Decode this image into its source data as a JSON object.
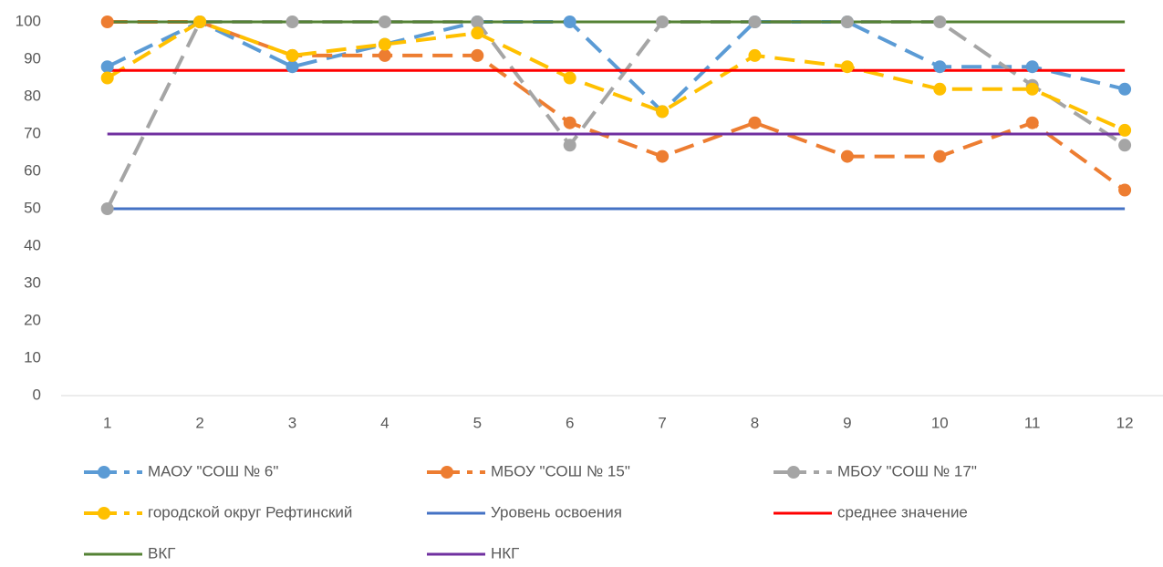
{
  "chart_data": {
    "type": "line",
    "categories": [
      "1",
      "2",
      "3",
      "4",
      "5",
      "6",
      "7",
      "8",
      "9",
      "10",
      "11",
      "12"
    ],
    "ylim": [
      0,
      100
    ],
    "yticks": [
      0,
      10,
      20,
      30,
      40,
      50,
      60,
      70,
      80,
      90,
      100
    ],
    "grid": false,
    "legend": "bottom",
    "series": [
      {
        "name": "МАОУ \"СОШ № 6\"",
        "color": "#5b9bd5",
        "dashed": true,
        "markers": true,
        "values": [
          88,
          100,
          88,
          94,
          100,
          100,
          76,
          100,
          100,
          88,
          88,
          82
        ]
      },
      {
        "name": "МБОУ \"СОШ № 15\"",
        "color": "#ed7d31",
        "dashed": true,
        "markers": true,
        "values": [
          100,
          100,
          91,
          91,
          91,
          73,
          64,
          73,
          64,
          64,
          73,
          55
        ]
      },
      {
        "name": "МБОУ \"СОШ № 17\"",
        "color": "#a5a5a5",
        "dashed": true,
        "markers": true,
        "values": [
          50,
          100,
          100,
          100,
          100,
          67,
          100,
          100,
          100,
          100,
          83,
          67
        ]
      },
      {
        "name": "городской округ Рефтинский",
        "color": "#ffc000",
        "dashed": true,
        "markers": true,
        "values": [
          85,
          100,
          91,
          94,
          97,
          85,
          76,
          91,
          88,
          82,
          82,
          71
        ]
      },
      {
        "name": "Уровень освоения",
        "color": "#4472c4",
        "dashed": false,
        "markers": false,
        "values": [
          50,
          50,
          50,
          50,
          50,
          50,
          50,
          50,
          50,
          50,
          50,
          50
        ]
      },
      {
        "name": "среднее значение",
        "color": "#ff0000",
        "dashed": false,
        "markers": false,
        "values": [
          87,
          87,
          87,
          87,
          87,
          87,
          87,
          87,
          87,
          87,
          87,
          87
        ]
      },
      {
        "name": "ВКГ",
        "color": "#548235",
        "dashed": false,
        "markers": false,
        "values": [
          100,
          100,
          100,
          100,
          100,
          100,
          100,
          100,
          100,
          100,
          100,
          100
        ]
      },
      {
        "name": "НКГ",
        "color": "#7030a0",
        "dashed": false,
        "markers": false,
        "values": [
          70,
          70,
          70,
          70,
          70,
          70,
          70,
          70,
          70,
          70,
          70,
          70
        ]
      }
    ]
  }
}
